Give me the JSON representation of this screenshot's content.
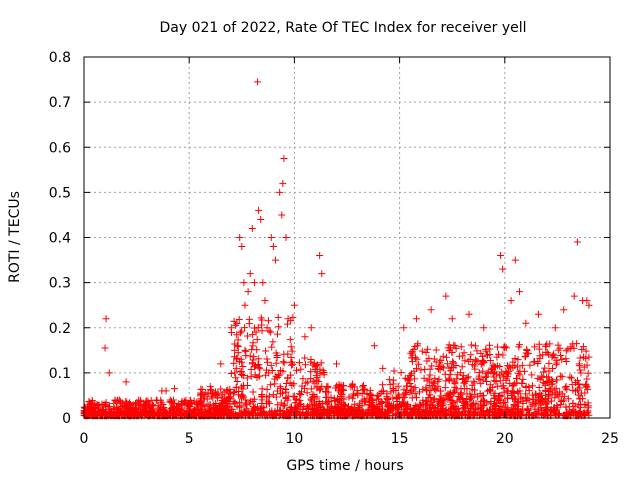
{
  "chart_data": {
    "type": "scatter",
    "title": "Day 021 of 2022, Rate Of TEC Index for receiver yell",
    "xlabel": "GPS time / hours",
    "ylabel": "ROTI / TECUs",
    "xlim": [
      0,
      25
    ],
    "ylim": [
      0,
      0.8
    ],
    "xticks": [
      0,
      5,
      10,
      15,
      20,
      25
    ],
    "yticks": [
      0,
      0.1,
      0.2,
      0.3,
      0.4,
      0.5,
      0.6,
      0.7,
      0.8
    ],
    "xtick_labels": [
      "0",
      "5",
      "10",
      "15",
      "20",
      "25"
    ],
    "ytick_labels": [
      "0",
      "0.1",
      "0.2",
      "0.3",
      "0.4",
      "0.5",
      "0.6",
      "0.7",
      "0.8"
    ],
    "grid": true,
    "marker": "+",
    "color": "#ff0000",
    "series": [
      {
        "name": "ROTI",
        "x": [
          1.0,
          1.05,
          1.2,
          2.0,
          3.7,
          3.9,
          4.3,
          6.0,
          6.5,
          7.0,
          7.4,
          7.5,
          7.6,
          7.65,
          7.8,
          7.9,
          8.0,
          8.1,
          8.25,
          8.3,
          8.4,
          8.5,
          8.6,
          8.7,
          8.9,
          9.0,
          9.1,
          9.3,
          9.4,
          9.45,
          9.5,
          9.6,
          9.7,
          10.0,
          10.5,
          10.8,
          11.2,
          11.3,
          12.0,
          13.8,
          14.2,
          15.2,
          15.8,
          16.5,
          17.2,
          17.5,
          18.3,
          19.0,
          19.8,
          19.9,
          20.3,
          20.5,
          20.7,
          21.0,
          21.6,
          22.4,
          22.8,
          23.3,
          23.45,
          23.7,
          23.9,
          24.0
        ],
        "y": [
          0.155,
          0.22,
          0.1,
          0.08,
          0.06,
          0.06,
          0.065,
          0.07,
          0.12,
          0.2,
          0.4,
          0.38,
          0.3,
          0.25,
          0.28,
          0.32,
          0.42,
          0.3,
          0.745,
          0.46,
          0.44,
          0.3,
          0.26,
          0.2,
          0.4,
          0.38,
          0.35,
          0.5,
          0.45,
          0.52,
          0.575,
          0.4,
          0.22,
          0.25,
          0.18,
          0.2,
          0.36,
          0.32,
          0.12,
          0.16,
          0.11,
          0.2,
          0.22,
          0.24,
          0.27,
          0.22,
          0.23,
          0.2,
          0.36,
          0.33,
          0.26,
          0.35,
          0.28,
          0.21,
          0.23,
          0.2,
          0.24,
          0.27,
          0.39,
          0.26,
          0.26,
          0.25
        ]
      }
    ]
  }
}
